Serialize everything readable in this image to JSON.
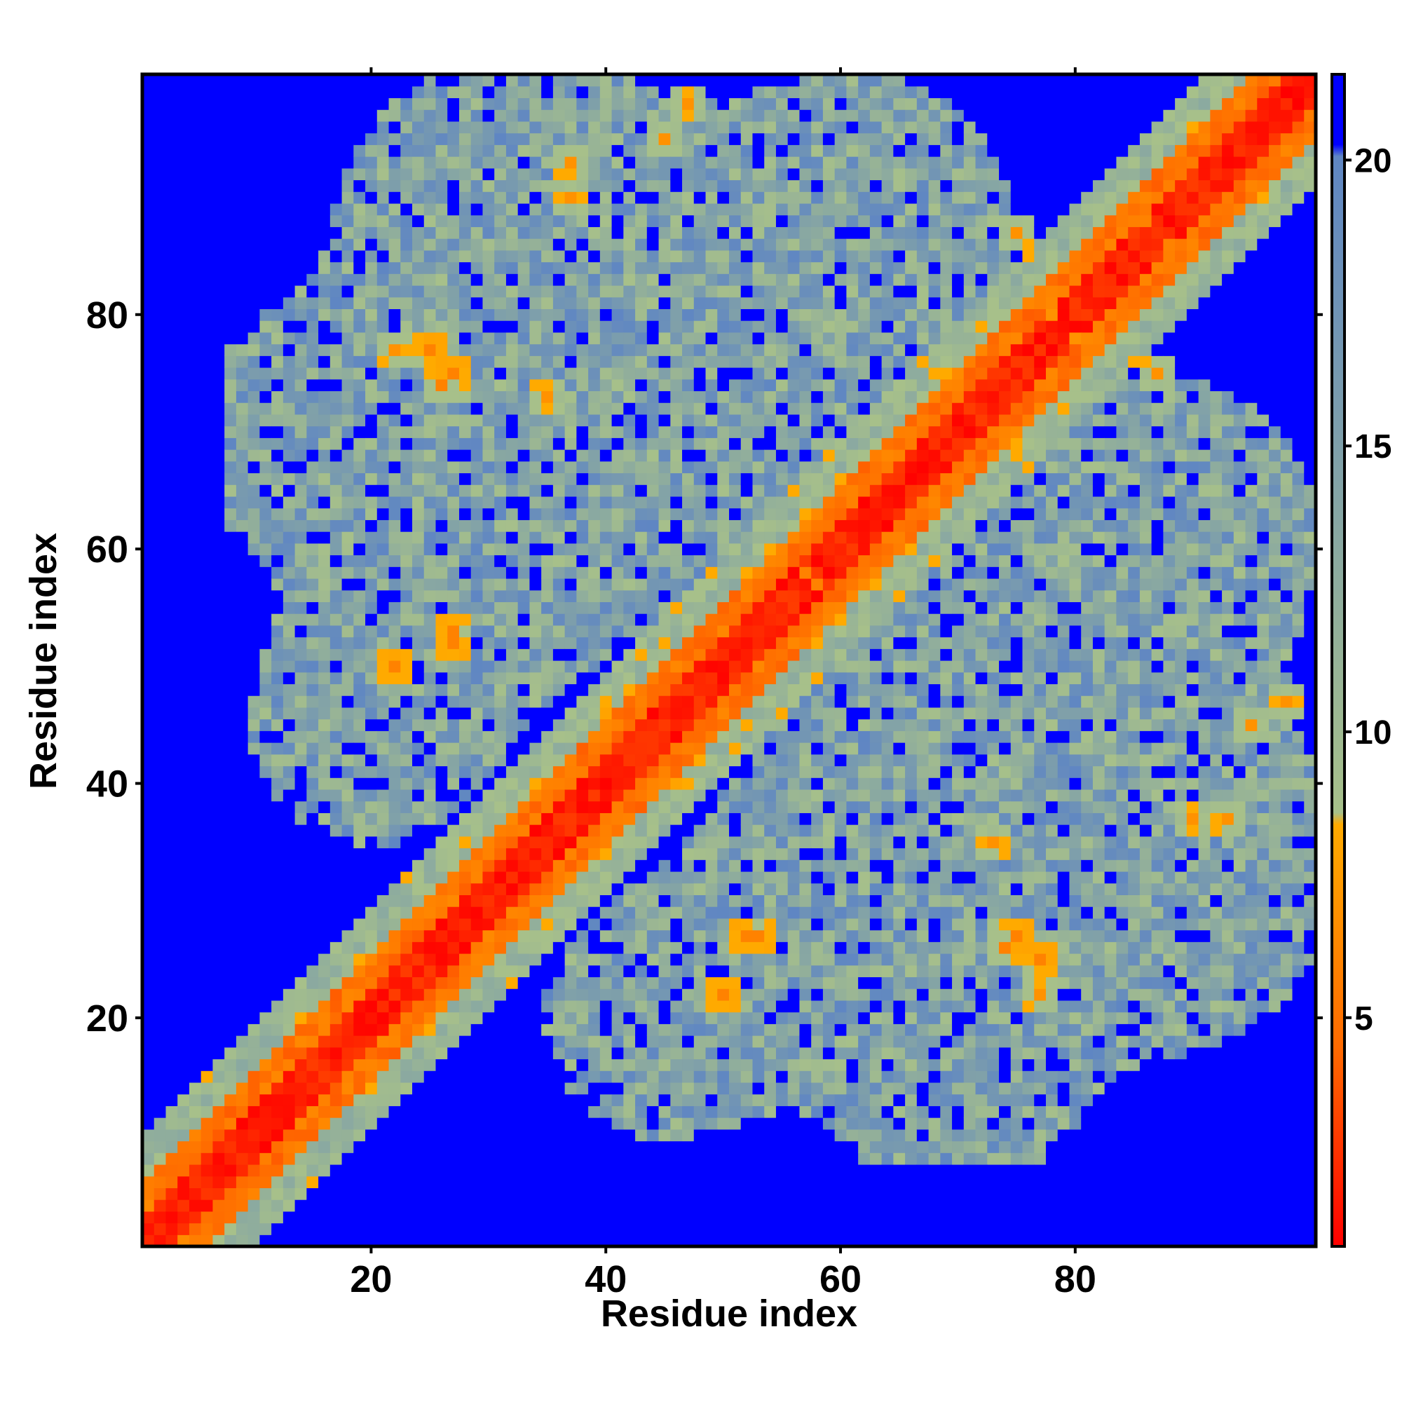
{
  "chart_data": {
    "type": "heatmap",
    "title": "",
    "xlabel": "Residue index",
    "ylabel": "Residue index",
    "n_residues": 100,
    "xlim": [
      0.5,
      100.5
    ],
    "ylim": [
      0.5,
      100.5
    ],
    "x_ticks": [
      20,
      40,
      60,
      80
    ],
    "y_ticks": [
      20,
      40,
      60,
      80
    ],
    "x_tick_labels": [
      "20",
      "40",
      "60",
      "80"
    ],
    "y_tick_labels": [
      "20",
      "40",
      "60",
      "80"
    ],
    "colorbar": {
      "range": [
        1,
        21.5
      ],
      "ticks": [
        5,
        10,
        15,
        20
      ],
      "tick_labels": [
        "5",
        "10",
        "15",
        "20"
      ],
      "colors": [
        "#ff0000",
        "#ff6a00",
        "#ffaa00",
        "#a7c08a",
        "#5f86c3",
        "#0000ff"
      ],
      "stops": [
        1,
        4.5,
        8.5,
        10,
        20,
        21.5
      ]
    },
    "features": {
      "diagonal": "values near 1-4 along |i-j|<=2, orange band |i-j|=3-5",
      "cutoff": "cells beyond contact cutoff drawn as blue (21.5)",
      "hotspots": [
        {
          "x": 25,
          "y": 77,
          "value": 6
        },
        {
          "x": 27,
          "y": 75,
          "value": 6
        },
        {
          "x": 35,
          "y": 73,
          "value": 7
        },
        {
          "x": 22,
          "y": 50,
          "value": 6
        },
        {
          "x": 27,
          "y": 53,
          "value": 6
        },
        {
          "x": 41,
          "y": 45,
          "value": 6
        },
        {
          "x": 52,
          "y": 27,
          "value": 6
        },
        {
          "x": 74,
          "y": 26,
          "value": 6
        },
        {
          "x": 77,
          "y": 22,
          "value": 7
        },
        {
          "x": 80,
          "y": 78,
          "value": 7
        },
        {
          "x": 75,
          "y": 87,
          "value": 7
        },
        {
          "x": 86,
          "y": 88,
          "value": 6
        },
        {
          "x": 68,
          "y": 65,
          "value": 6
        },
        {
          "x": 58,
          "y": 57,
          "value": 6
        },
        {
          "x": 90,
          "y": 37,
          "value": 7
        },
        {
          "x": 95,
          "y": 45,
          "value": 7
        },
        {
          "x": 47,
          "y": 98,
          "value": 7
        },
        {
          "x": 37,
          "y": 93,
          "value": 7
        }
      ]
    }
  }
}
